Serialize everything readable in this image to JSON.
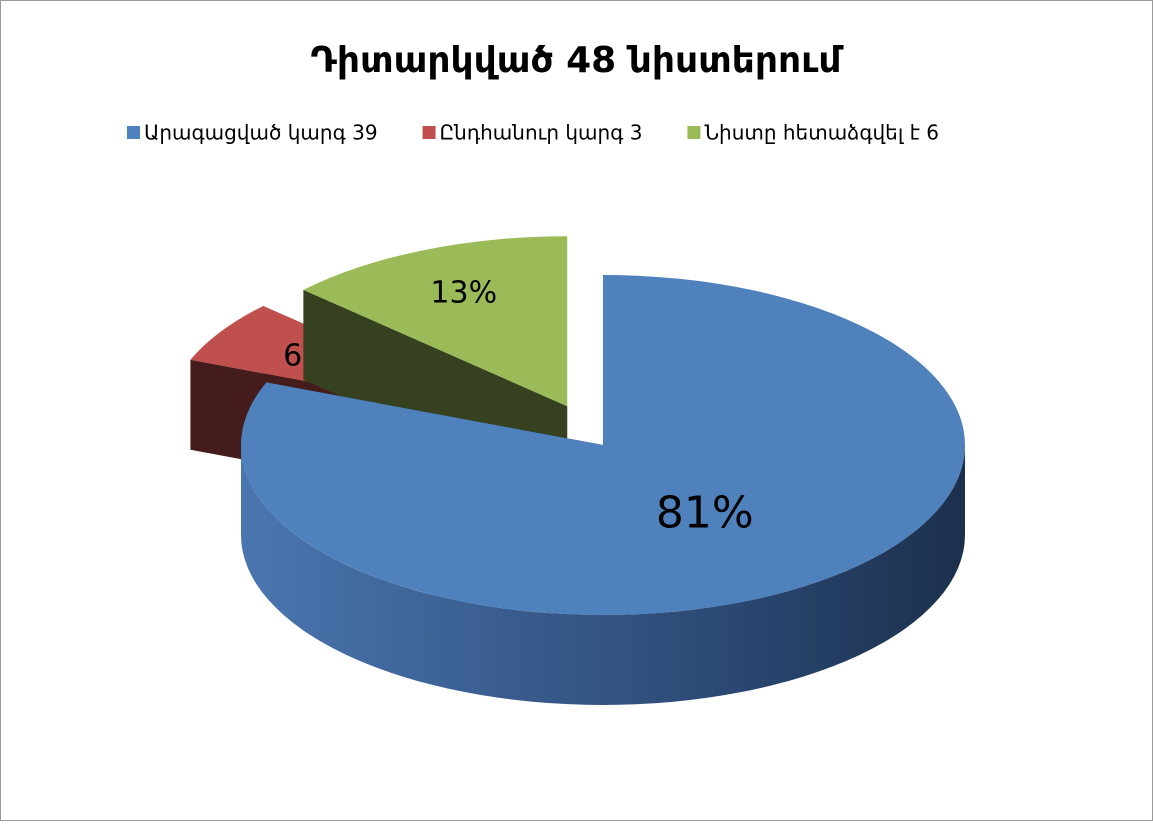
{
  "chart_data": {
    "type": "pie",
    "title": "Դիտարկված 48 նիստերում",
    "categories": [
      "Արագացված կարգ 39",
      "Ընդհանուր կարգ 3",
      "Նիստը հետաձգվել է 6"
    ],
    "values": [
      81,
      6,
      13
    ],
    "value_labels": [
      "81%",
      "6%",
      "13%"
    ],
    "colors": [
      "#4f81bd",
      "#c0504d",
      "#9bbb59"
    ],
    "legend": "top"
  }
}
